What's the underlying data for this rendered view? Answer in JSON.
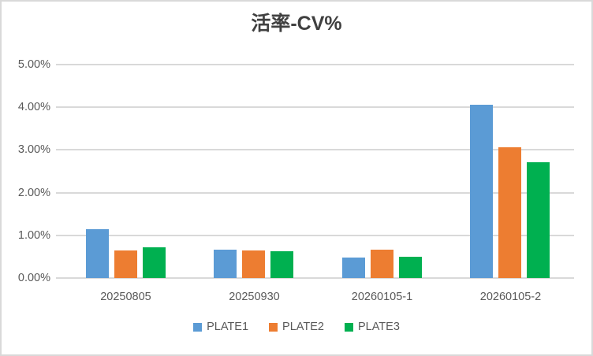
{
  "window": {
    "background": "#FFFFFF",
    "border_color": "#D9D9D9"
  },
  "chart_data": {
    "type": "bar",
    "title": "活率-CV%",
    "categories": [
      "20250805",
      "20250930",
      "20260105-1",
      "20260105-2"
    ],
    "series": [
      {
        "name": "PLATE1",
        "color": "#5B9BD5",
        "values": [
          1.14,
          0.66,
          0.48,
          4.05
        ]
      },
      {
        "name": "PLATE2",
        "color": "#ED7D31",
        "values": [
          0.65,
          0.64,
          0.67,
          3.07
        ]
      },
      {
        "name": "PLATE3",
        "color": "#00B050",
        "values": [
          0.72,
          0.62,
          0.5,
          2.71
        ]
      }
    ],
    "xlabel": "",
    "ylabel": "",
    "ylim": [
      0,
      5
    ],
    "ytick_step": 1,
    "ytick_labels": [
      "0.00%",
      "1.00%",
      "2.00%",
      "3.00%",
      "4.00%",
      "5.00%"
    ],
    "value_unit": "percent",
    "grid": true,
    "legend_position": "bottom"
  },
  "colors": {
    "gridline": "#D9D9D9",
    "axis_text": "#595959",
    "title_text": "#404040"
  }
}
